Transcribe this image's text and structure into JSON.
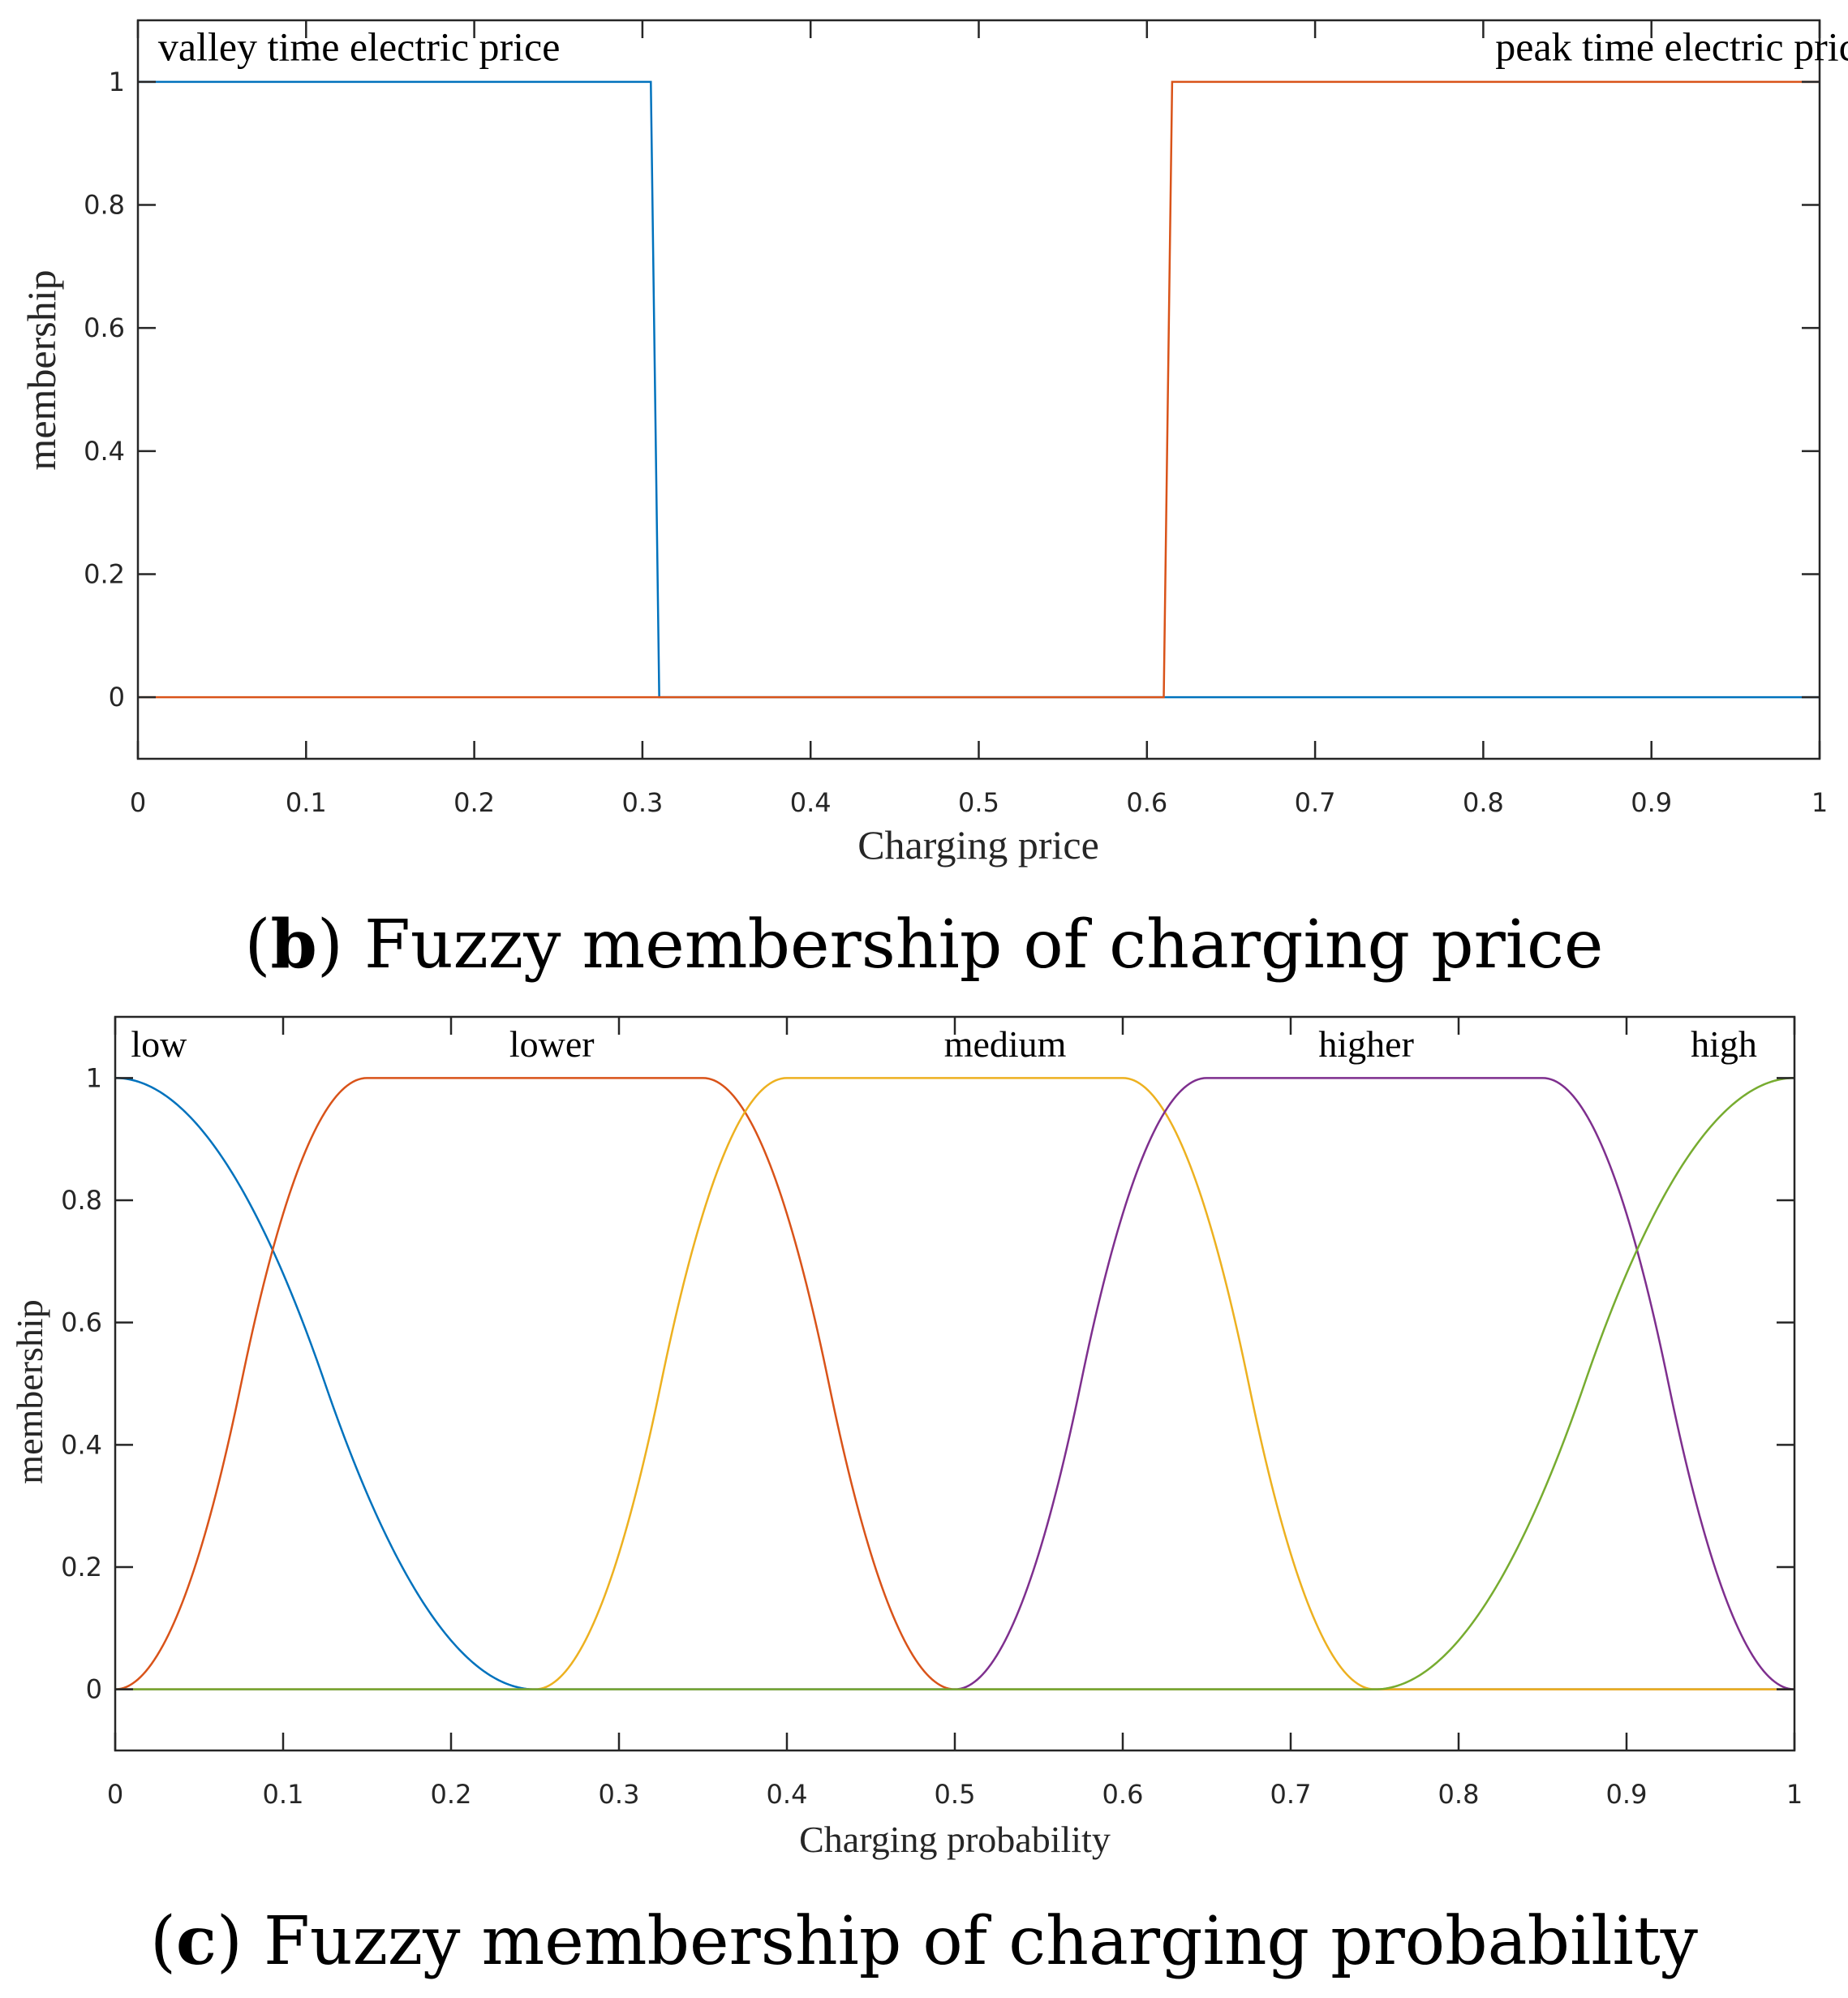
{
  "chart_data": [
    {
      "type": "line",
      "title": "",
      "xlabel": "Charging price",
      "ylabel": "membership",
      "xlim": [
        0,
        1
      ],
      "ylim": [
        -0.1,
        1.1
      ],
      "xticks": [
        0,
        0.1,
        0.2,
        0.3,
        0.4,
        0.5,
        0.6,
        0.7,
        0.8,
        0.9,
        1
      ],
      "xtick_labels": [
        "0",
        "0.1",
        "0.2",
        "0.3",
        "0.4",
        "0.5",
        "0.6",
        "0.7",
        "0.8",
        "0.9",
        "1"
      ],
      "yticks": [
        0,
        0.2,
        0.4,
        0.6,
        0.8,
        1
      ],
      "ytick_labels": [
        "0",
        "0.2",
        "0.4",
        "0.6",
        "0.8",
        "1"
      ],
      "grid": false,
      "caption_letter": "b",
      "caption_text": " Fuzzy membership of charging price",
      "series": [
        {
          "name": "valley time electric price",
          "color": "#0072BD",
          "x": [
            0,
            0.305,
            0.31,
            1
          ],
          "y": [
            1,
            1,
            0,
            0
          ]
        },
        {
          "name": "peak time electric price",
          "color": "#D95319",
          "x": [
            0,
            0.61,
            0.615,
            1
          ],
          "y": [
            0,
            0,
            1,
            1
          ]
        }
      ],
      "annotations": [
        {
          "text": "valley time electric price",
          "x": 0.012,
          "y": 1.035,
          "anchor": "start"
        },
        {
          "text": "peak time electric price",
          "x": 0.92,
          "y": 1.035,
          "anchor": "middle"
        }
      ]
    },
    {
      "type": "line",
      "title": "",
      "xlabel": "Charging probability",
      "ylabel": "membership",
      "xlim": [
        0,
        1
      ],
      "ylim": [
        -0.1,
        1.1
      ],
      "xticks": [
        0,
        0.1,
        0.2,
        0.3,
        0.4,
        0.5,
        0.6,
        0.7,
        0.8,
        0.9,
        1
      ],
      "xtick_labels": [
        "0",
        "0.1",
        "0.2",
        "0.3",
        "0.4",
        "0.5",
        "0.6",
        "0.7",
        "0.8",
        "0.9",
        "1"
      ],
      "yticks": [
        0,
        0.2,
        0.4,
        0.6,
        0.8,
        1
      ],
      "ytick_labels": [
        "0",
        "0.2",
        "0.4",
        "0.6",
        "0.8",
        "1"
      ],
      "grid": false,
      "caption_letter": "c",
      "caption_text": " Fuzzy membership of charging probability",
      "series": [
        {
          "name": "low",
          "color": "#0072BD",
          "shape": "zmf",
          "params": [
            0,
            0.25
          ]
        },
        {
          "name": "lower",
          "color": "#D95319",
          "shape": "pimf",
          "params": [
            0,
            0.15,
            0.35,
            0.5
          ]
        },
        {
          "name": "medium",
          "color": "#EDB120",
          "shape": "pimf",
          "params": [
            0.25,
            0.4,
            0.6,
            0.75
          ]
        },
        {
          "name": "higher",
          "color": "#7E2F8E",
          "shape": "pimf",
          "params": [
            0.5,
            0.65,
            0.85,
            1.0
          ]
        },
        {
          "name": "high",
          "color": "#77AC30",
          "shape": "smf",
          "params": [
            0.75,
            1.0
          ]
        }
      ],
      "annotations": [
        {
          "text": "low",
          "x": 0.026,
          "y": 1.035,
          "anchor": "middle"
        },
        {
          "text": "lower",
          "x": 0.26,
          "y": 1.035,
          "anchor": "middle"
        },
        {
          "text": "medium",
          "x": 0.53,
          "y": 1.035,
          "anchor": "middle"
        },
        {
          "text": "higher",
          "x": 0.745,
          "y": 1.035,
          "anchor": "middle"
        },
        {
          "text": "high",
          "x": 0.958,
          "y": 1.035,
          "anchor": "middle"
        }
      ]
    }
  ]
}
